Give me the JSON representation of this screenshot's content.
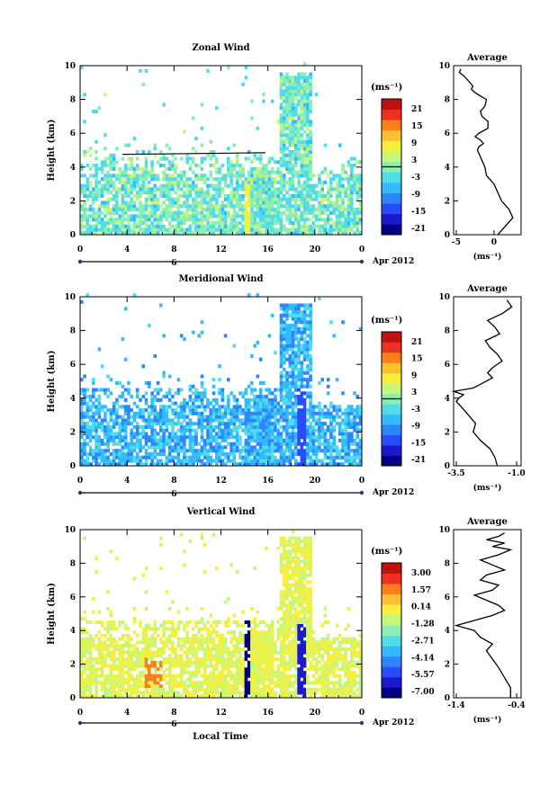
{
  "date_label": "Apr 2012",
  "day_label": "6",
  "xlabel": "Local Time",
  "x_ticks": [
    "0",
    "4",
    "8",
    "12",
    "16",
    "20",
    "0"
  ],
  "y_ticks": [
    "0",
    "2",
    "4",
    "6",
    "8",
    "10"
  ],
  "ylabel": "Height (km)",
  "unit_label": "(ms⁻¹)",
  "avg_title": "Average",
  "colormap": [
    "#000080",
    "#1a1acc",
    "#2a4cff",
    "#2e86ff",
    "#33bbff",
    "#52dcea",
    "#8aefb0",
    "#c6f77a",
    "#f5f040",
    "#ffc030",
    "#ff7f1a",
    "#ee3020",
    "#c01010"
  ],
  "chart_data": [
    {
      "type": "heatmap",
      "title": "Zonal Wind",
      "ylabel": "Height (km)",
      "xlim": [
        0,
        24
      ],
      "ylim": [
        0,
        10
      ],
      "colorbar": {
        "label": "(ms⁻¹)",
        "ticks": [
          "21",
          "15",
          "9",
          "3",
          "-3",
          "-9",
          "-15",
          "-21"
        ],
        "min": -24,
        "max": 24
      },
      "dominant_range": [
        -6,
        3
      ],
      "average_profile": {
        "title": "Average",
        "xlabel": "(ms⁻¹)",
        "xlim": [
          -5,
          3
        ],
        "x_ticks": [
          "-5",
          "0"
        ],
        "ylim": [
          0,
          10
        ],
        "x": [
          0.5,
          1.5,
          2.5,
          2.0,
          1.0,
          0.5,
          0.0,
          -1.0,
          -1.2,
          -1.5,
          -1.8,
          -2.2,
          -2.0,
          -1.4,
          -1.8,
          -2.5,
          -2.0,
          -0.8,
          -0.8,
          -1.6,
          -1.8,
          -1.2,
          -1.0,
          -1.8,
          -2.5,
          -3.0,
          -2.8,
          -3.2,
          -3.6,
          -4.0,
          -4.6,
          -4.4
        ],
        "y": [
          0.0,
          0.5,
          1.0,
          1.5,
          2.0,
          2.5,
          3.0,
          3.5,
          4.0,
          4.3,
          4.6,
          5.0,
          5.2,
          5.4,
          5.6,
          5.8,
          6.0,
          6.3,
          6.7,
          7.0,
          7.3,
          7.6,
          8.0,
          8.2,
          8.4,
          8.6,
          8.8,
          9.0,
          9.2,
          9.4,
          9.6,
          9.8
        ]
      }
    },
    {
      "type": "heatmap",
      "title": "Meridional Wind",
      "ylabel": "Height (km)",
      "xlim": [
        0,
        24
      ],
      "ylim": [
        0,
        10
      ],
      "colorbar": {
        "label": "(ms⁻¹)",
        "ticks": [
          "21",
          "15",
          "9",
          "3",
          "-3",
          "-9",
          "-15",
          "-21"
        ],
        "min": -24,
        "max": 24
      },
      "dominant_range": [
        -12,
        -3
      ],
      "average_profile": {
        "title": "Average",
        "xlabel": "(ms⁻¹)",
        "xlim": [
          -3.5,
          -1.0
        ],
        "x_ticks": [
          "-3.5",
          "-1.0"
        ],
        "ylim": [
          0,
          10
        ],
        "x": [
          -1.8,
          -1.9,
          -2.1,
          -2.5,
          -2.8,
          -2.7,
          -3.0,
          -3.3,
          -3.5,
          -3.4,
          -3.2,
          -3.6,
          -2.8,
          -2.4,
          -2.0,
          -2.2,
          -2.0,
          -1.6,
          -1.8,
          -2.1,
          -2.3,
          -1.7,
          -1.9,
          -2.2,
          -1.6,
          -1.2,
          -1.4
        ],
        "y": [
          0.0,
          0.5,
          1.0,
          1.5,
          2.0,
          2.5,
          3.0,
          3.5,
          3.8,
          4.0,
          4.2,
          4.4,
          4.6,
          4.9,
          5.2,
          5.5,
          5.8,
          6.2,
          6.6,
          7.0,
          7.4,
          7.8,
          8.2,
          8.6,
          9.0,
          9.4,
          9.8
        ]
      }
    },
    {
      "type": "heatmap",
      "title": "Vertical Wind",
      "ylabel": "Height (km)",
      "xlabel": "Local Time",
      "xlim": [
        0,
        24
      ],
      "ylim": [
        0,
        10
      ],
      "colorbar": {
        "label": "(ms⁻¹)",
        "ticks": [
          "3.00",
          "1.57",
          "0.14",
          "-1.28",
          "-2.71",
          "-4.14",
          "-5.57",
          "-7.00"
        ],
        "min": -7.7,
        "max": 3.7
      },
      "dominant_range": [
        -1.28,
        0.14
      ],
      "average_profile": {
        "title": "Average",
        "xlabel": "(ms⁻¹)",
        "xlim": [
          -1.4,
          -0.4
        ],
        "x_ticks": [
          "-1.4",
          "-0.4"
        ],
        "ylim": [
          0,
          10
        ],
        "x": [
          -0.5,
          -0.5,
          -0.6,
          -0.7,
          -0.8,
          -0.9,
          -0.8,
          -1.0,
          -1.1,
          -1.4,
          -1.1,
          -0.8,
          -0.6,
          -0.7,
          -0.9,
          -1.1,
          -0.8,
          -0.7,
          -1.0,
          -0.9,
          -0.6,
          -0.8,
          -1.0,
          -0.7,
          -0.5,
          -0.8,
          -0.6,
          -0.9,
          -0.7,
          -0.6
        ],
        "y": [
          0.0,
          0.6,
          1.2,
          1.8,
          2.3,
          2.8,
          3.2,
          3.6,
          4.0,
          4.3,
          4.6,
          4.9,
          5.2,
          5.5,
          5.8,
          6.1,
          6.4,
          6.7,
          7.0,
          7.3,
          7.6,
          7.9,
          8.2,
          8.5,
          8.8,
          9.0,
          9.2,
          9.4,
          9.6,
          9.8
        ]
      }
    }
  ]
}
